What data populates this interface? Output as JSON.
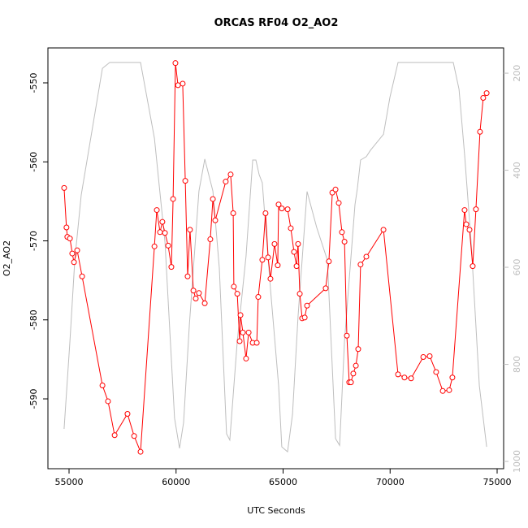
{
  "chart_data": {
    "type": "line",
    "title": "ORCAS RF04 O2_AO2",
    "x_label": "UTC Seconds",
    "y_label": "O2_AO2",
    "xlim": [
      54013,
      75304
    ],
    "xticks": [
      55000,
      60000,
      65000,
      70000,
      75000
    ],
    "ylim": [
      -598.84,
      -545.58
    ],
    "yticks": [
      -590,
      -580,
      -570,
      -560,
      -550
    ],
    "y2lim": [
      1015,
      148
    ],
    "y2ticks": [
      200,
      400,
      600,
      800,
      1000
    ],
    "series": [
      {
        "color": "#bebebe",
        "axis": "y2",
        "markers": false,
        "x": [
          54770,
          55040,
          55270,
          55570,
          56560,
          56900,
          58340,
          58990,
          59480,
          59930,
          60160,
          60350,
          60620,
          61070,
          61340,
          61720,
          62020,
          62360,
          62510,
          62860,
          63270,
          63580,
          63730,
          63880,
          64030,
          64410,
          64790,
          64940,
          65210,
          65440,
          65700,
          66120,
          66570,
          67070,
          67450,
          67640,
          67870,
          68360,
          68470,
          68620,
          68890,
          69080,
          69690,
          69990,
          70370,
          70640,
          72950,
          73220,
          73480,
          73790,
          74170,
          74510
        ],
        "values": [
          933,
          752,
          585,
          451,
          190,
          178,
          178,
          334,
          548,
          911,
          973,
          920,
          719,
          443,
          377,
          443,
          602,
          943,
          956,
          752,
          577,
          379,
          379,
          409,
          426,
          645,
          844,
          970,
          980,
          903,
          702,
          444,
          518,
          585,
          953,
          967,
          752,
          471,
          438,
          379,
          372,
          359,
          326,
          250,
          178,
          178,
          178,
          233,
          367,
          551,
          844,
          970
        ]
      },
      {
        "color": "#ff0000",
        "axis": "y",
        "markers": true,
        "x": [
          54770,
          54880,
          54920,
          55040,
          55150,
          55230,
          55380,
          55610,
          56560,
          56820,
          57130,
          57730,
          58040,
          58340,
          58990,
          59100,
          59250,
          59360,
          59480,
          59630,
          59780,
          59860,
          59970,
          60090,
          60310,
          60430,
          60540,
          60650,
          60810,
          60920,
          61070,
          61340,
          61600,
          61720,
          61830,
          62320,
          62550,
          62670,
          62700,
          62860,
          62970,
          63010,
          63120,
          63270,
          63390,
          63580,
          63770,
          63840,
          64030,
          64180,
          64300,
          64410,
          64600,
          64750,
          64790,
          64940,
          65210,
          65360,
          65510,
          65630,
          65700,
          65780,
          65890,
          66010,
          66120,
          66990,
          67140,
          67300,
          67450,
          67600,
          67750,
          67870,
          67980,
          68090,
          68170,
          68280,
          68400,
          68510,
          68620,
          68890,
          69690,
          70370,
          70670,
          70980,
          71550,
          71850,
          72150,
          72460,
          72760,
          72910,
          73480,
          73560,
          73710,
          73860,
          74010,
          74200,
          74350,
          74510
        ],
        "values": [
          -563.3,
          -568.3,
          -569.5,
          -569.7,
          -571.6,
          -572.7,
          -571.2,
          -574.5,
          -588.3,
          -590.3,
          -594.6,
          -591.9,
          -594.7,
          -596.7,
          -570.7,
          -566.1,
          -568.9,
          -567.6,
          -569.0,
          -570.6,
          -573.3,
          -564.7,
          -547.5,
          -550.3,
          -550.1,
          -562.4,
          -574.5,
          -568.6,
          -576.3,
          -577.3,
          -576.6,
          -577.9,
          -569.8,
          -564.7,
          -567.4,
          -562.5,
          -561.6,
          -566.5,
          -575.8,
          -576.7,
          -582.7,
          -579.4,
          -581.6,
          -584.9,
          -581.6,
          -582.9,
          -582.9,
          -577.1,
          -572.4,
          -566.5,
          -572.1,
          -574.8,
          -570.4,
          -573.1,
          -565.4,
          -565.9,
          -566.0,
          -568.4,
          -571.4,
          -573.2,
          -570.4,
          -576.7,
          -579.8,
          -579.7,
          -578.2,
          -576.0,
          -572.6,
          -563.9,
          -563.5,
          -565.2,
          -568.9,
          -570.1,
          -582.0,
          -587.9,
          -587.9,
          -586.8,
          -585.8,
          -583.7,
          -573.0,
          -572.0,
          -568.6,
          -586.9,
          -587.3,
          -587.4,
          -584.7,
          -584.6,
          -586.6,
          -589.0,
          -588.9,
          -587.3,
          -566.1,
          -567.9,
          -568.6,
          -573.2,
          -566.0,
          -556.2,
          -551.9,
          -551.3
        ]
      }
    ]
  }
}
